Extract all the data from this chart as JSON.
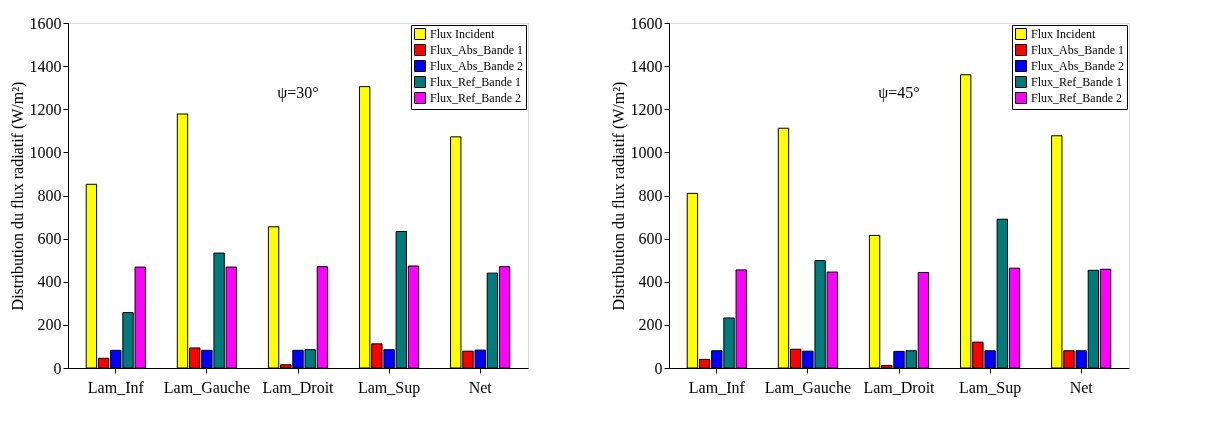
{
  "chart_data": [
    {
      "type": "bar",
      "ylabel": "Distribution du flux radiatif (W/m²)",
      "categories": [
        "Lam_Inf",
        "Lam_Gauche",
        "Lam_Droit",
        "Lam_Sup",
        "Net"
      ],
      "ylim": [
        0,
        1600
      ],
      "yticks": [
        0,
        200,
        400,
        600,
        800,
        1000,
        1200,
        1400,
        1600
      ],
      "grid": false,
      "legend": "top right",
      "annotations": [
        "ψ=30°"
      ],
      "series": [
        {
          "name": "Flux Incident",
          "color": "#ffff00",
          "values": [
            852,
            1178,
            655,
            1305,
            1072
          ]
        },
        {
          "name": "Flux_Abs_Bande 1",
          "color": "#ff0000",
          "values": [
            45,
            93,
            15,
            112,
            78
          ]
        },
        {
          "name": "Flux_Abs_Bande 2",
          "color": "#0000ff",
          "values": [
            82,
            82,
            82,
            85,
            83
          ]
        },
        {
          "name": "Flux_Ref_Bande 1",
          "color": "#007b7b",
          "values": [
            257,
            533,
            85,
            633,
            440
          ]
        },
        {
          "name": "Flux_Ref_Bande 2",
          "color": "#ff00ff",
          "values": [
            468,
            468,
            470,
            473,
            470
          ]
        }
      ]
    },
    {
      "type": "bar",
      "ylabel": "Distribution du flux radiatif (W/m²)",
      "categories": [
        "Lam_Inf",
        "Lam_Gauche",
        "Lam_Droit",
        "Lam_Sup",
        "Net"
      ],
      "ylim": [
        0,
        1600
      ],
      "yticks": [
        0,
        200,
        400,
        600,
        800,
        1000,
        1200,
        1400,
        1600
      ],
      "grid": false,
      "legend": "top right",
      "annotations": [
        "ψ=45°"
      ],
      "series": [
        {
          "name": "Flux Incident",
          "color": "#ffff00",
          "values": [
            810,
            1112,
            615,
            1360,
            1077
          ]
        },
        {
          "name": "Flux_Abs_Bande 1",
          "color": "#ff0000",
          "values": [
            40,
            87,
            12,
            120,
            80
          ]
        },
        {
          "name": "Flux_Abs_Bande 2",
          "color": "#0000ff",
          "values": [
            80,
            78,
            77,
            80,
            80
          ]
        },
        {
          "name": "Flux_Ref_Bande 1",
          "color": "#007b7b",
          "values": [
            232,
            498,
            80,
            690,
            453
          ]
        },
        {
          "name": "Flux_Ref_Bande 2",
          "color": "#ff00ff",
          "values": [
            455,
            445,
            443,
            463,
            458
          ]
        }
      ]
    }
  ]
}
